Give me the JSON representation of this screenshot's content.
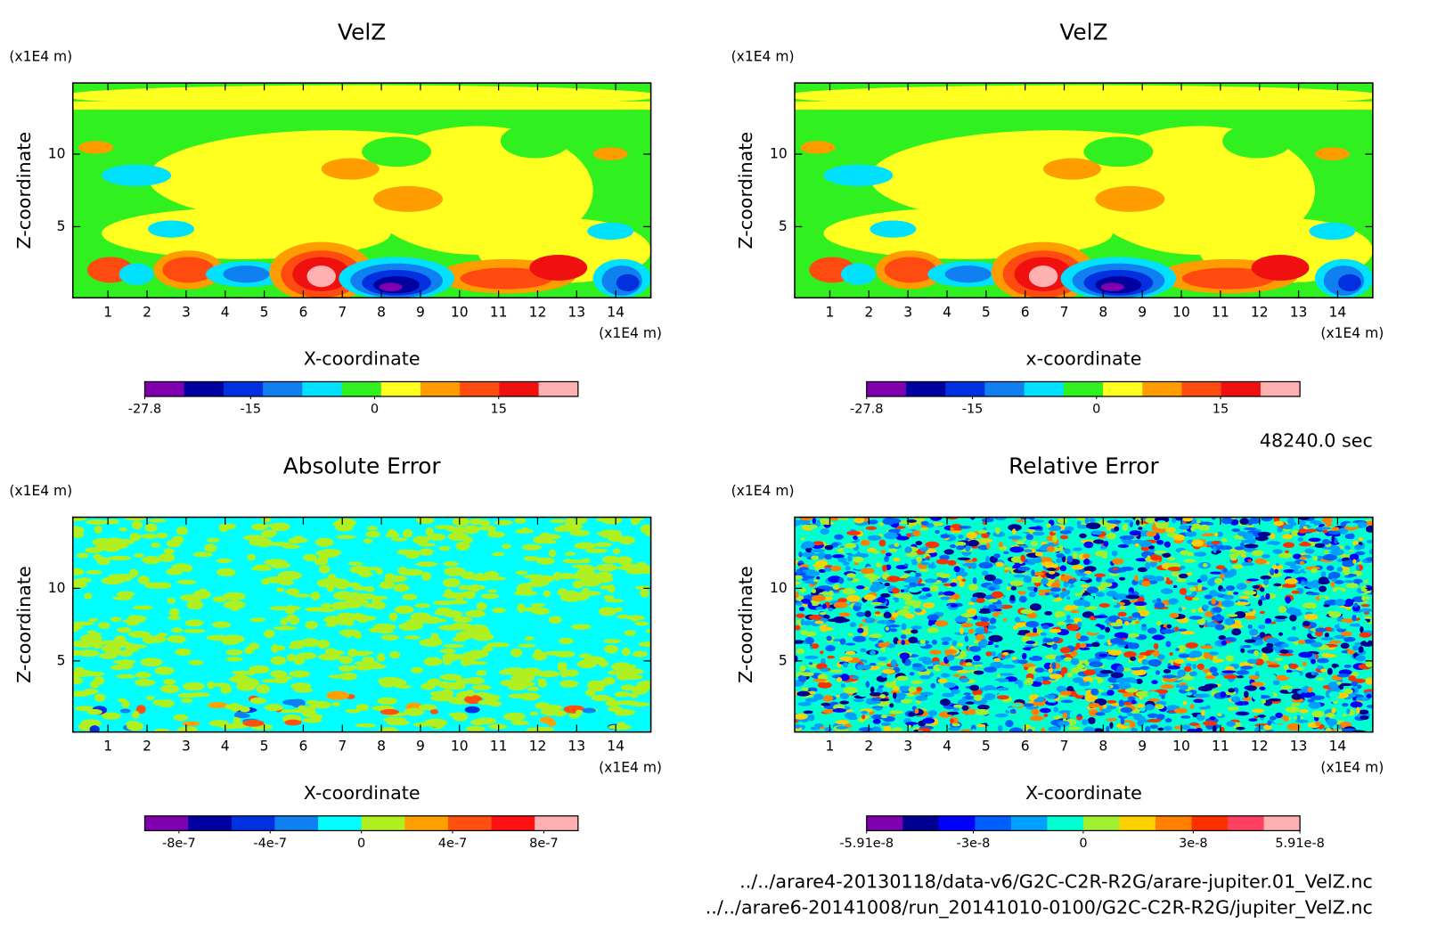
{
  "chart_data": [
    {
      "type": "contour",
      "title": "VelZ",
      "xlabel": "X-coordinate",
      "ylabel": "Z-coordinate",
      "x_unit": "(x1E4 m)",
      "y_unit": "(x1E4 m)",
      "xlim": [
        0.1,
        14.9
      ],
      "ylim": [
        0.1,
        14.9
      ],
      "xticks": [
        1,
        2,
        3,
        4,
        5,
        6,
        7,
        8,
        9,
        10,
        11,
        12,
        13,
        14
      ],
      "yticks": [
        5,
        10
      ],
      "colorbar": {
        "colors": [
          "#8000b0",
          "#0000a0",
          "#0030e0",
          "#1080f0",
          "#00e0ff",
          "#30f020",
          "#ffff20",
          "#ff9c00",
          "#ff4a10",
          "#f01010",
          "#ffb0b0"
        ],
        "lim": [
          -27.8,
          24.6
        ],
        "ticks": [
          -27.8,
          -15,
          0,
          15
        ]
      }
    },
    {
      "type": "contour",
      "title": "VelZ",
      "xlabel": "x-coordinate",
      "ylabel": "Z-coordinate",
      "x_unit": "(x1E4 m)",
      "y_unit": "(x1E4 m)",
      "xlim": [
        0.1,
        14.9
      ],
      "ylim": [
        0.1,
        14.9
      ],
      "xticks": [
        1,
        2,
        3,
        4,
        5,
        6,
        7,
        8,
        9,
        10,
        11,
        12,
        13,
        14
      ],
      "yticks": [
        5,
        10
      ],
      "colorbar": {
        "colors": [
          "#8000b0",
          "#0000a0",
          "#0030e0",
          "#1080f0",
          "#00e0ff",
          "#30f020",
          "#ffff20",
          "#ff9c00",
          "#ff4a10",
          "#f01010",
          "#ffb0b0"
        ],
        "lim": [
          -27.8,
          24.6
        ],
        "ticks": [
          -27.8,
          -15,
          0,
          15
        ]
      }
    },
    {
      "type": "contour",
      "title": "Absolute Error",
      "xlabel": "X-coordinate",
      "ylabel": "Z-coordinate",
      "x_unit": "(x1E4 m)",
      "y_unit": "(x1E4 m)",
      "xlim": [
        0.1,
        14.9
      ],
      "ylim": [
        0.1,
        14.9
      ],
      "xticks": [
        1,
        2,
        3,
        4,
        5,
        6,
        7,
        8,
        9,
        10,
        11,
        12,
        13,
        14
      ],
      "yticks": [
        5,
        10
      ],
      "colorbar": {
        "colors": [
          "#8000b0",
          "#0000a0",
          "#0030e0",
          "#1080f0",
          "#00ffff",
          "#b0f020",
          "#ffa000",
          "#ff5010",
          "#ff1010",
          "#ffb0b0"
        ],
        "lim": [
          -9.5e-07,
          9.5e-07
        ],
        "ticks": [
          {
            "value": -8e-07,
            "label": "-8e-7"
          },
          {
            "value": -4e-07,
            "label": "-4e-7"
          },
          0,
          {
            "value": 4e-07,
            "label": "4e-7"
          },
          {
            "value": 8e-07,
            "label": "8e-7"
          }
        ]
      }
    },
    {
      "type": "contour",
      "title": "Relative Error",
      "xlabel": "X-coordinate",
      "ylabel": "Z-coordinate",
      "x_unit": "(x1E4 m)",
      "y_unit": "(x1E4 m)",
      "xlim": [
        0.1,
        14.9
      ],
      "ylim": [
        0.1,
        14.9
      ],
      "xticks": [
        1,
        2,
        3,
        4,
        5,
        6,
        7,
        8,
        9,
        10,
        11,
        12,
        13,
        14
      ],
      "yticks": [
        5,
        10
      ],
      "colorbar": {
        "colors": [
          "#8000b0",
          "#000090",
          "#0000ff",
          "#0060ff",
          "#00a0ff",
          "#00ffd0",
          "#a0f030",
          "#ffd000",
          "#ff8000",
          "#ff3000",
          "#ff4060",
          "#ffb0b0"
        ],
        "lim": [
          -5.91e-08,
          5.91e-08
        ],
        "ticks": [
          {
            "value": -5.91e-08,
            "label": "-5.91e-8"
          },
          {
            "value": -3e-08,
            "label": "-3e-8"
          },
          0,
          {
            "value": 3e-08,
            "label": "3e-8"
          },
          {
            "value": 5.91e-08,
            "label": "5.91e-8"
          }
        ]
      }
    }
  ],
  "annotations": {
    "time": "48240.0 sec",
    "files": [
      "../../arare4-20130118/data-v6/G2C-C2R-R2G/arare-jupiter.01_VelZ.nc",
      "../../arare6-20141008/run_20141010-0100/G2C-C2R-R2G/jupiter_VelZ.nc"
    ]
  }
}
